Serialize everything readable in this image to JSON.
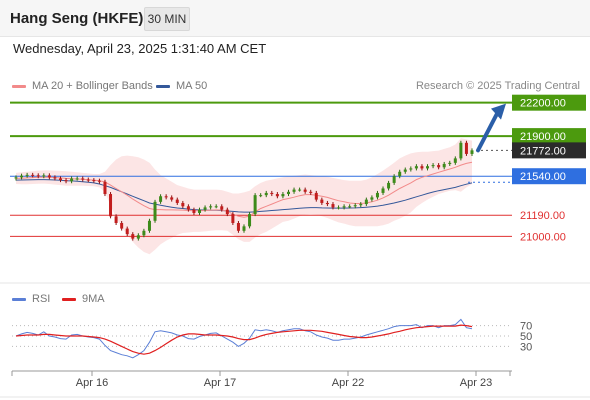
{
  "header": {
    "title": "Hang Seng (HKFE)",
    "timeframe": "30 MIN"
  },
  "datetime": "Wednesday, April 23, 2025 1:31:40 AM CET",
  "legend": {
    "ma20": {
      "label": "MA 20 + Bollinger Bands",
      "color": "#f28a8a"
    },
    "ma50": {
      "label": "MA 50",
      "color": "#34589a"
    }
  },
  "credit": "Research © 2025 Trading Central",
  "rsi_legend": {
    "rsi": {
      "label": "RSI",
      "color": "#5b7fd6"
    },
    "ma9": {
      "label": "9MA",
      "color": "#e02020"
    }
  },
  "chart_data": [
    {
      "type": "candlestick",
      "ylim": [
        20770,
        22260
      ],
      "x_labels": [
        "Apr 16",
        "Apr 17",
        "Apr 22",
        "Apr 23"
      ],
      "levels": [
        {
          "label": "22200.00",
          "value": 22200,
          "color": "#4c9a0e",
          "kind": "resistance"
        },
        {
          "label": "21900.00",
          "value": 21900,
          "color": "#4c9a0e",
          "kind": "resistance"
        },
        {
          "label": "21772.00",
          "value": 21772,
          "color": "#2b2b2b",
          "kind": "last"
        },
        {
          "label": "21540.00",
          "value": 21540,
          "color": "#2f6fe0",
          "kind": "pivot"
        },
        {
          "label": "21190.00",
          "value": 21190,
          "color": "#e03030",
          "kind": "support"
        },
        {
          "label": "21000.00",
          "value": 21000,
          "color": "#e03030",
          "kind": "support"
        }
      ],
      "target_arrow": {
        "from": 21772,
        "to": 22200
      },
      "close": [
        21530,
        21545,
        21552,
        21548,
        21540,
        21548,
        21530,
        21520,
        21505,
        21495,
        21520,
        21520,
        21510,
        21505,
        21500,
        21490,
        21380,
        21180,
        21120,
        21070,
        21020,
        20980,
        21010,
        21050,
        21140,
        21310,
        21360,
        21350,
        21330,
        21300,
        21270,
        21240,
        21210,
        21240,
        21260,
        21270,
        21270,
        21240,
        21200,
        21120,
        21050,
        21090,
        21200,
        21370,
        21370,
        21390,
        21380,
        21360,
        21380,
        21400,
        21420,
        21420,
        21400,
        21390,
        21330,
        21300,
        21290,
        21260,
        21260,
        21270,
        21270,
        21280,
        21290,
        21330,
        21350,
        21390,
        21430,
        21480,
        21540,
        21580,
        21600,
        21610,
        21630,
        21610,
        21630,
        21640,
        21620,
        21650,
        21660,
        21700,
        21840,
        21740,
        21772
      ],
      "ma20": [
        21520,
        21522,
        21525,
        21528,
        21530,
        21532,
        21530,
        21528,
        21525,
        21520,
        21518,
        21515,
        21512,
        21508,
        21505,
        21500,
        21488,
        21460,
        21430,
        21400,
        21370,
        21335,
        21305,
        21275,
        21250,
        21240,
        21240,
        21238,
        21238,
        21237,
        21236,
        21232,
        21230,
        21230,
        21232,
        21236,
        21238,
        21236,
        21226,
        21200,
        21180,
        21172,
        21180,
        21220,
        21250,
        21270,
        21290,
        21310,
        21330,
        21340,
        21352,
        21365,
        21375,
        21375,
        21370,
        21360,
        21350,
        21335,
        21320,
        21310,
        21300,
        21295,
        21295,
        21300,
        21310,
        21325,
        21345,
        21370,
        21400,
        21430,
        21455,
        21480,
        21510,
        21530,
        21545,
        21560,
        21575,
        21590,
        21605,
        21620,
        21640,
        21655,
        21665
      ],
      "bb_upper": [
        21570,
        21575,
        21580,
        21585,
        21590,
        21592,
        21592,
        21590,
        21588,
        21585,
        21580,
        21575,
        21570,
        21565,
        21560,
        21560,
        21580,
        21640,
        21690,
        21720,
        21725,
        21720,
        21710,
        21690,
        21660,
        21600,
        21550,
        21520,
        21490,
        21460,
        21445,
        21430,
        21420,
        21420,
        21420,
        21420,
        21420,
        21415,
        21400,
        21385,
        21385,
        21395,
        21410,
        21450,
        21480,
        21500,
        21510,
        21520,
        21530,
        21540,
        21545,
        21550,
        21555,
        21550,
        21545,
        21540,
        21535,
        21525,
        21515,
        21505,
        21500,
        21500,
        21500,
        21510,
        21530,
        21560,
        21590,
        21625,
        21660,
        21700,
        21725,
        21745,
        21755,
        21760,
        21760,
        21765,
        21770,
        21785,
        21800,
        21825,
        21880,
        21870,
        21860
      ],
      "bb_lower": [
        21470,
        21468,
        21468,
        21470,
        21472,
        21474,
        21470,
        21465,
        21460,
        21455,
        21455,
        21455,
        21455,
        21452,
        21450,
        21440,
        21395,
        21280,
        21170,
        21080,
        21015,
        20950,
        20900,
        20860,
        20840,
        20880,
        20930,
        20960,
        20985,
        21015,
        21030,
        21035,
        21040,
        21040,
        21045,
        21050,
        21055,
        21055,
        21050,
        21015,
        20975,
        20950,
        20950,
        20990,
        21020,
        21040,
        21070,
        21100,
        21130,
        21140,
        21160,
        21180,
        21195,
        21200,
        21195,
        21180,
        21165,
        21145,
        21125,
        21115,
        21100,
        21090,
        21090,
        21090,
        21090,
        21090,
        21100,
        21115,
        21140,
        21160,
        21185,
        21215,
        21265,
        21300,
        21330,
        21355,
        21380,
        21395,
        21410,
        21415,
        21400,
        21440,
        21470
      ],
      "ma50": [
        21505,
        21506,
        21507,
        21508,
        21510,
        21510,
        21508,
        21506,
        21504,
        21500,
        21498,
        21495,
        21490,
        21485,
        21480,
        21470,
        21455,
        21440,
        21420,
        21400,
        21380,
        21360,
        21340,
        21320,
        21300,
        21290,
        21280,
        21270,
        21262,
        21255,
        21250,
        21245,
        21240,
        21238,
        21236,
        21235,
        21234,
        21232,
        21228,
        21224,
        21220,
        21218,
        21218,
        21220,
        21224,
        21228,
        21232,
        21236,
        21240,
        21244,
        21248,
        21252,
        21256,
        21258,
        21258,
        21256,
        21255,
        21254,
        21254,
        21254,
        21255,
        21256,
        21258,
        21262,
        21266,
        21272,
        21280,
        21290,
        21300,
        21312,
        21325,
        21340,
        21355,
        21370,
        21385,
        21398,
        21410,
        21420,
        21430,
        21440,
        21455,
        21468,
        21480
      ]
    },
    {
      "type": "line",
      "name": "RSI",
      "ylim": [
        0,
        100
      ],
      "ticks": [
        70,
        50,
        30
      ],
      "rsi": [
        50,
        54,
        57,
        55,
        52,
        58,
        50,
        48,
        45,
        44,
        52,
        53,
        50,
        48,
        47,
        44,
        32,
        22,
        18,
        14,
        12,
        8,
        14,
        22,
        38,
        58,
        60,
        58,
        56,
        52,
        50,
        45,
        44,
        49,
        52,
        55,
        56,
        50,
        44,
        38,
        30,
        36,
        46,
        62,
        60,
        62,
        60,
        57,
        60,
        62,
        64,
        64,
        60,
        58,
        52,
        48,
        46,
        42,
        42,
        44,
        44,
        46,
        48,
        52,
        55,
        58,
        61,
        64,
        68,
        70,
        70,
        70,
        72,
        66,
        70,
        70,
        66,
        70,
        70,
        72,
        82,
        66,
        64
      ],
      "ma9": [
        50,
        51,
        52,
        52,
        52,
        53,
        53,
        52,
        51,
        50,
        50,
        50,
        50,
        49,
        48,
        47,
        44,
        40,
        35,
        30,
        25,
        20,
        17,
        15,
        17,
        22,
        28,
        35,
        42,
        48,
        52,
        54,
        54,
        53,
        52,
        52,
        52,
        51,
        50,
        48,
        45,
        43,
        43,
        46,
        50,
        53,
        55,
        57,
        58,
        59,
        60,
        61,
        61,
        61,
        60,
        59,
        57,
        55,
        53,
        51,
        49,
        48,
        47,
        47,
        48,
        50,
        52,
        54,
        57,
        59,
        62,
        64,
        66,
        67,
        68,
        69,
        69,
        69,
        69,
        69,
        71,
        70,
        68
      ]
    }
  ]
}
